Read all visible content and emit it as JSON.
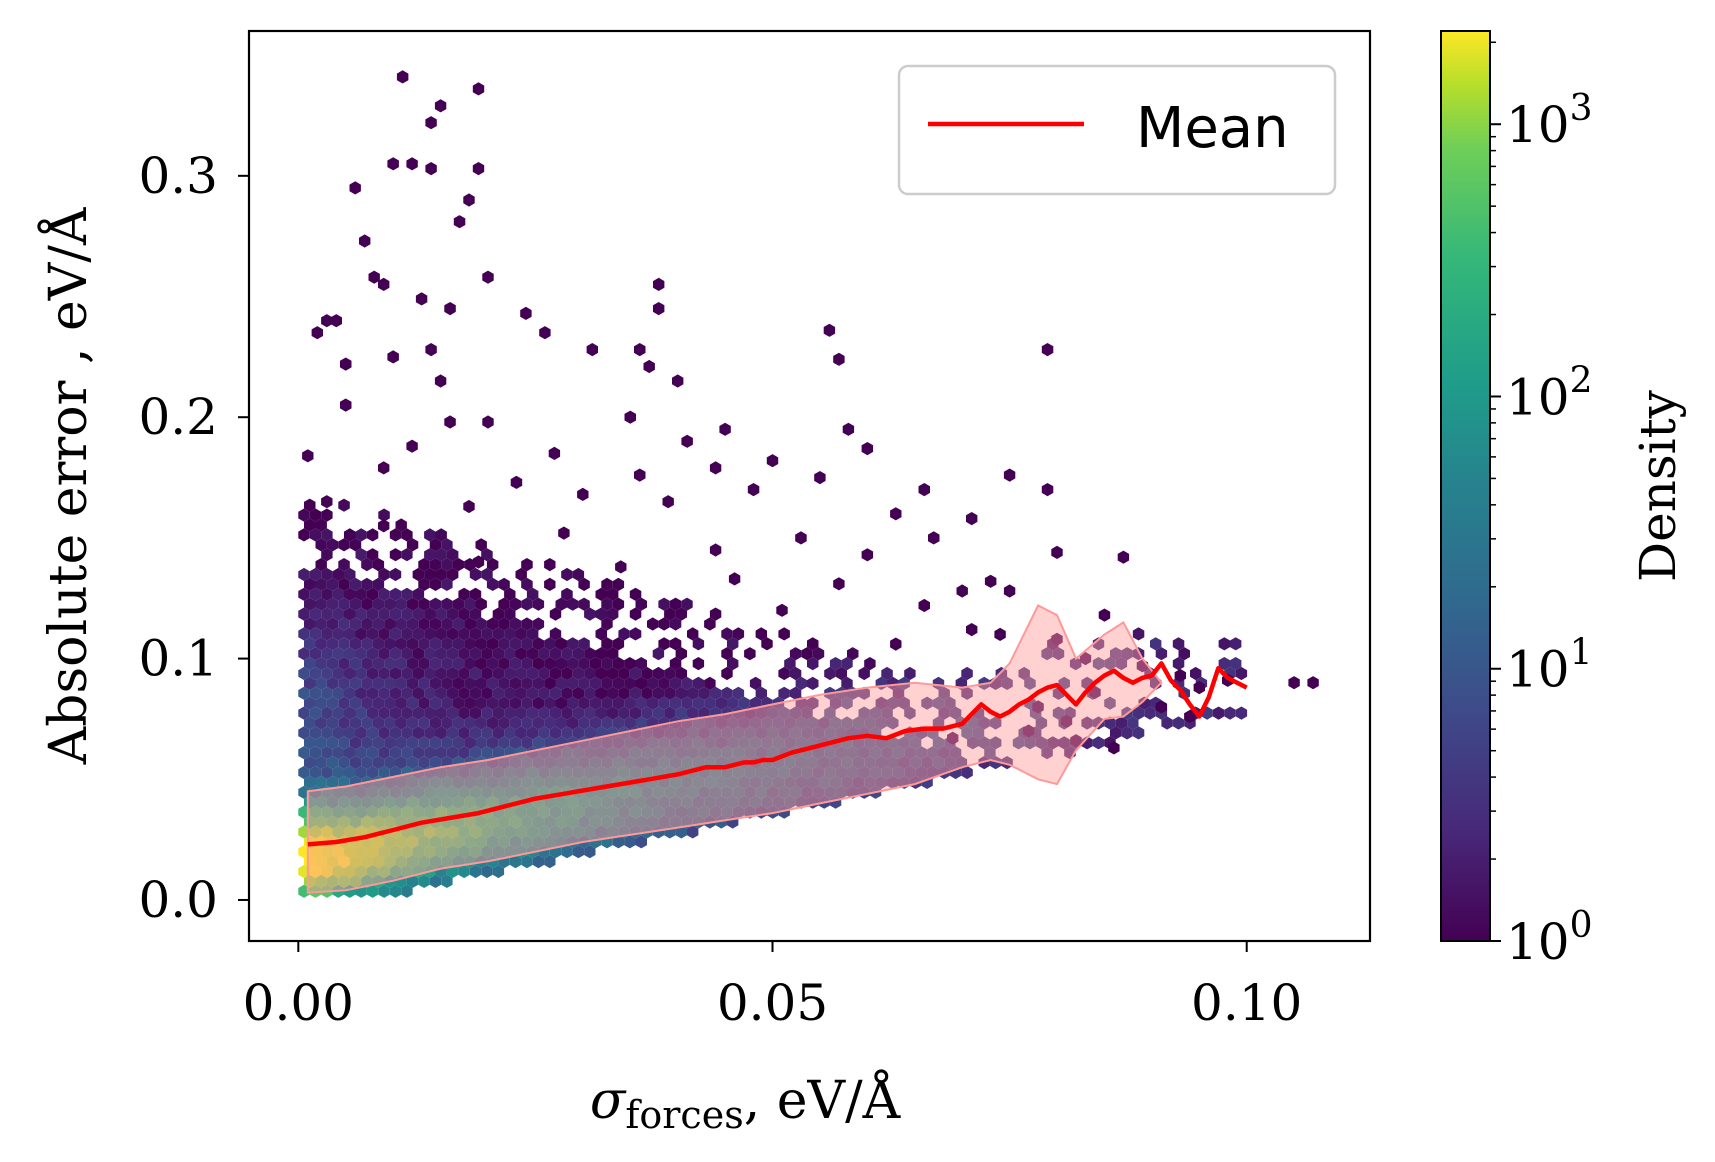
{
  "chart_data": {
    "type": "hexbin",
    "x_axis": {
      "label_symbol": "σ",
      "label_subscript": "forces",
      "label_unit": ",  eV/Å",
      "range": [
        -0.0052,
        0.113
      ],
      "ticks": [
        0.0,
        0.05,
        0.1
      ],
      "tick_labels": [
        "0.00",
        "0.05",
        "0.10"
      ]
    },
    "y_axis": {
      "label": "Absolute error ,  eV/Å",
      "range": [
        -0.017,
        0.36
      ],
      "ticks": [
        0.0,
        0.1,
        0.2,
        0.3
      ],
      "tick_labels": [
        "0.0",
        "0.1",
        "0.2",
        "0.3"
      ]
    },
    "colorbar": {
      "label": "Density",
      "scale": "log",
      "range": [
        1,
        2200
      ],
      "ticks": [
        1,
        10,
        100,
        1000
      ],
      "tick_labels": [
        {
          "base": "10",
          "exp": "0"
        },
        {
          "base": "10",
          "exp": "1"
        },
        {
          "base": "10",
          "exp": "2"
        },
        {
          "base": "10",
          "exp": "3"
        }
      ],
      "colormap": "viridis"
    },
    "legend": {
      "position": "upper right",
      "entries": [
        {
          "label": "Mean",
          "color": "#ff0000"
        }
      ]
    },
    "series": [
      {
        "name": "Mean",
        "color": "#ff0000",
        "x": [
          0.001,
          0.004,
          0.007,
          0.01,
          0.013,
          0.016,
          0.019,
          0.022,
          0.025,
          0.028,
          0.031,
          0.034,
          0.037,
          0.04,
          0.043,
          0.045,
          0.046,
          0.047,
          0.048,
          0.049,
          0.05,
          0.052,
          0.054,
          0.056,
          0.058,
          0.06,
          0.062,
          0.064,
          0.066,
          0.068,
          0.07,
          0.071,
          0.072,
          0.073,
          0.074,
          0.075,
          0.076,
          0.077,
          0.078,
          0.079,
          0.08,
          0.081,
          0.082,
          0.083,
          0.084,
          0.085,
          0.086,
          0.087,
          0.088,
          0.089,
          0.09,
          0.091,
          0.092,
          0.093,
          0.094,
          0.095,
          0.096,
          0.097,
          0.098,
          0.099,
          0.1
        ],
        "y": [
          0.023,
          0.024,
          0.026,
          0.029,
          0.032,
          0.034,
          0.036,
          0.039,
          0.042,
          0.044,
          0.046,
          0.048,
          0.05,
          0.052,
          0.055,
          0.055,
          0.056,
          0.057,
          0.057,
          0.058,
          0.058,
          0.061,
          0.063,
          0.065,
          0.067,
          0.068,
          0.067,
          0.07,
          0.071,
          0.071,
          0.073,
          0.077,
          0.081,
          0.078,
          0.076,
          0.078,
          0.081,
          0.083,
          0.086,
          0.088,
          0.089,
          0.085,
          0.081,
          0.086,
          0.09,
          0.093,
          0.095,
          0.092,
          0.09,
          0.092,
          0.093,
          0.098,
          0.091,
          0.087,
          0.081,
          0.076,
          0.084,
          0.096,
          0.092,
          0.09,
          0.088
        ]
      }
    ],
    "std_band": {
      "color": "#ff9999",
      "x": [
        0.001,
        0.005,
        0.01,
        0.015,
        0.02,
        0.025,
        0.03,
        0.035,
        0.04,
        0.045,
        0.05,
        0.055,
        0.06,
        0.065,
        0.07,
        0.073,
        0.075,
        0.078,
        0.08,
        0.082,
        0.085,
        0.087,
        0.089,
        0.091
      ],
      "upper": [
        0.045,
        0.047,
        0.051,
        0.055,
        0.058,
        0.062,
        0.066,
        0.07,
        0.074,
        0.077,
        0.081,
        0.085,
        0.088,
        0.09,
        0.088,
        0.09,
        0.098,
        0.122,
        0.118,
        0.1,
        0.11,
        0.115,
        0.1,
        0.09
      ],
      "lower": [
        0.003,
        0.004,
        0.008,
        0.013,
        0.016,
        0.02,
        0.024,
        0.027,
        0.03,
        0.033,
        0.036,
        0.04,
        0.044,
        0.048,
        0.055,
        0.058,
        0.056,
        0.05,
        0.048,
        0.062,
        0.075,
        0.076,
        0.082,
        0.09
      ]
    },
    "outlier_points": [
      [
        0.011,
        0.341
      ],
      [
        0.019,
        0.336
      ],
      [
        0.015,
        0.329
      ],
      [
        0.014,
        0.322
      ],
      [
        0.01,
        0.305
      ],
      [
        0.012,
        0.305
      ],
      [
        0.014,
        0.303
      ],
      [
        0.019,
        0.303
      ],
      [
        0.006,
        0.295
      ],
      [
        0.018,
        0.29
      ],
      [
        0.017,
        0.281
      ],
      [
        0.007,
        0.273
      ],
      [
        0.008,
        0.258
      ],
      [
        0.02,
        0.258
      ],
      [
        0.009,
        0.255
      ],
      [
        0.013,
        0.249
      ],
      [
        0.038,
        0.255
      ],
      [
        0.003,
        0.24
      ],
      [
        0.004,
        0.24
      ],
      [
        0.016,
        0.245
      ],
      [
        0.024,
        0.243
      ],
      [
        0.038,
        0.245
      ],
      [
        0.002,
        0.235
      ],
      [
        0.026,
        0.235
      ],
      [
        0.056,
        0.236
      ],
      [
        0.005,
        0.222
      ],
      [
        0.01,
        0.225
      ],
      [
        0.014,
        0.228
      ],
      [
        0.015,
        0.215
      ],
      [
        0.031,
        0.228
      ],
      [
        0.036,
        0.228
      ],
      [
        0.057,
        0.224
      ],
      [
        0.079,
        0.228
      ],
      [
        0.04,
        0.215
      ],
      [
        0.037,
        0.221
      ],
      [
        0.005,
        0.205
      ],
      [
        0.016,
        0.198
      ],
      [
        0.02,
        0.198
      ],
      [
        0.035,
        0.2
      ],
      [
        0.045,
        0.195
      ],
      [
        0.058,
        0.195
      ],
      [
        0.012,
        0.188
      ],
      [
        0.027,
        0.185
      ],
      [
        0.041,
        0.19
      ],
      [
        0.05,
        0.182
      ],
      [
        0.06,
        0.187
      ],
      [
        0.001,
        0.184
      ],
      [
        0.009,
        0.179
      ],
      [
        0.023,
        0.173
      ],
      [
        0.036,
        0.176
      ],
      [
        0.044,
        0.179
      ],
      [
        0.055,
        0.175
      ],
      [
        0.066,
        0.17
      ],
      [
        0.075,
        0.176
      ],
      [
        0.079,
        0.17
      ],
      [
        0.003,
        0.165
      ],
      [
        0.018,
        0.163
      ],
      [
        0.03,
        0.168
      ],
      [
        0.039,
        0.165
      ],
      [
        0.048,
        0.17
      ],
      [
        0.063,
        0.16
      ],
      [
        0.071,
        0.158
      ],
      [
        0.009,
        0.155
      ],
      [
        0.028,
        0.152
      ],
      [
        0.053,
        0.15
      ],
      [
        0.067,
        0.15
      ],
      [
        0.044,
        0.145
      ],
      [
        0.06,
        0.143
      ],
      [
        0.08,
        0.144
      ],
      [
        0.087,
        0.142
      ],
      [
        0.019,
        0.14
      ],
      [
        0.034,
        0.138
      ],
      [
        0.046,
        0.133
      ],
      [
        0.057,
        0.131
      ],
      [
        0.07,
        0.128
      ],
      [
        0.073,
        0.132
      ],
      [
        0.075,
        0.128
      ],
      [
        0.051,
        0.12
      ],
      [
        0.066,
        0.122
      ],
      [
        0.085,
        0.118
      ],
      [
        0.071,
        0.112
      ],
      [
        0.074,
        0.11
      ],
      [
        0.08,
        0.108
      ],
      [
        0.063,
        0.106
      ],
      [
        0.083,
        0.1
      ],
      [
        0.089,
        0.097
      ],
      [
        0.093,
        0.093
      ],
      [
        0.095,
        0.088
      ],
      [
        0.084,
        0.086
      ],
      [
        0.078,
        0.08
      ],
      [
        0.091,
        0.08
      ],
      [
        0.105,
        0.09
      ],
      [
        0.107,
        0.09
      ],
      [
        0.098,
        0.091
      ],
      [
        0.094,
        0.076
      ],
      [
        0.077,
        0.07
      ],
      [
        0.081,
        0.074
      ],
      [
        0.082,
        0.066
      ],
      [
        0.086,
        0.063
      ],
      [
        0.069,
        0.067
      ]
    ]
  }
}
